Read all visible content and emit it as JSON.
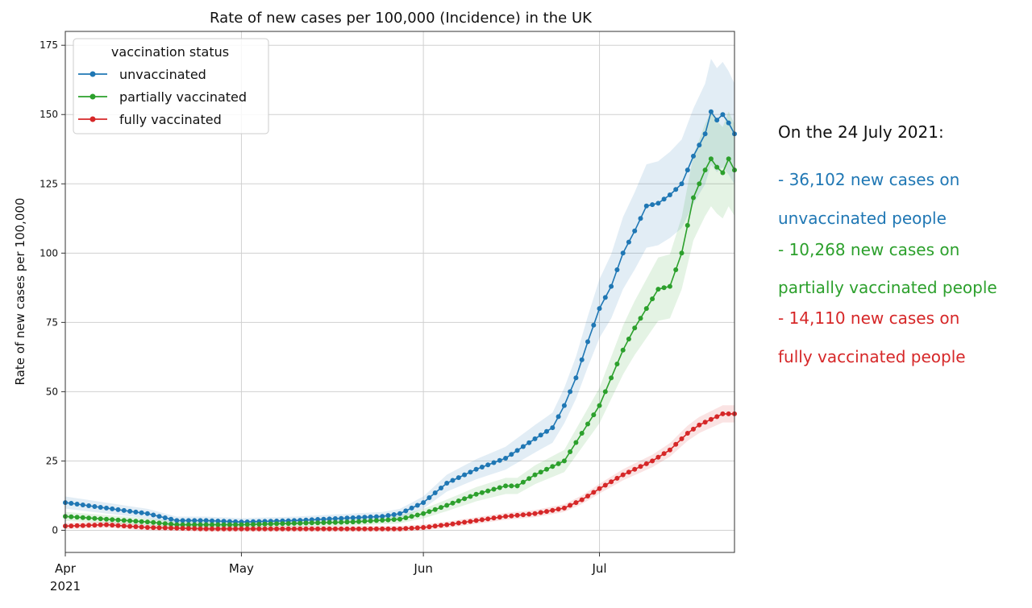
{
  "chart_data": {
    "type": "line",
    "title": "Rate of new cases per 100,000 (Incidence) in the UK",
    "xlabel": "",
    "ylabel": "Rate of new cases per 100,000",
    "x_start": "2021-04-01",
    "x_end": "2021-07-24",
    "ylim": [
      -8,
      180
    ],
    "yticks": [
      0,
      25,
      50,
      75,
      100,
      125,
      150,
      175
    ],
    "ytick_labels": [
      "0",
      "25",
      "50",
      "75",
      "100",
      "125",
      "150",
      "175"
    ],
    "xticks": [
      {
        "date": "2021-04-01",
        "label": "Apr",
        "sublabel": "2021"
      },
      {
        "date": "2021-05-01",
        "label": "May",
        "sublabel": ""
      },
      {
        "date": "2021-06-01",
        "label": "Jun",
        "sublabel": ""
      },
      {
        "date": "2021-07-01",
        "label": "Jul",
        "sublabel": ""
      }
    ],
    "grid": true,
    "legend": {
      "title": "vaccination status",
      "placement": "top-left"
    },
    "series": [
      {
        "name": "unvaccinated",
        "color": "#1f77b4",
        "points": [
          [
            "2021-04-01",
            10
          ],
          [
            "2021-04-08",
            8
          ],
          [
            "2021-04-15",
            6
          ],
          [
            "2021-04-20",
            3.5
          ],
          [
            "2021-04-25",
            3.5
          ],
          [
            "2021-05-01",
            3
          ],
          [
            "2021-05-10",
            3.5
          ],
          [
            "2021-05-15",
            4
          ],
          [
            "2021-05-20",
            4.5
          ],
          [
            "2021-05-25",
            5
          ],
          [
            "2021-05-28",
            6
          ],
          [
            "2021-06-01",
            10
          ],
          [
            "2021-06-05",
            17
          ],
          [
            "2021-06-10",
            22
          ],
          [
            "2021-06-15",
            26
          ],
          [
            "2021-06-20",
            33
          ],
          [
            "2021-06-23",
            37
          ],
          [
            "2021-06-25",
            45
          ],
          [
            "2021-06-27",
            55
          ],
          [
            "2021-06-29",
            68
          ],
          [
            "2021-07-01",
            80
          ],
          [
            "2021-07-03",
            88
          ],
          [
            "2021-07-05",
            100
          ],
          [
            "2021-07-07",
            108
          ],
          [
            "2021-07-09",
            117
          ],
          [
            "2021-07-11",
            118
          ],
          [
            "2021-07-13",
            121
          ],
          [
            "2021-07-15",
            125
          ],
          [
            "2021-07-17",
            135
          ],
          [
            "2021-07-19",
            143
          ],
          [
            "2021-07-20",
            151
          ],
          [
            "2021-07-21",
            148
          ],
          [
            "2021-07-22",
            150
          ],
          [
            "2021-07-23",
            147
          ],
          [
            "2021-07-24",
            143
          ]
        ],
        "band": 0.12
      },
      {
        "name": "partially vaccinated",
        "color": "#2ca02c",
        "points": [
          [
            "2021-04-01",
            5
          ],
          [
            "2021-04-08",
            4
          ],
          [
            "2021-04-15",
            3
          ],
          [
            "2021-04-20",
            2
          ],
          [
            "2021-05-01",
            2
          ],
          [
            "2021-05-10",
            2.5
          ],
          [
            "2021-05-20",
            3
          ],
          [
            "2021-05-28",
            4
          ],
          [
            "2021-06-01",
            6
          ],
          [
            "2021-06-05",
            9
          ],
          [
            "2021-06-10",
            13
          ],
          [
            "2021-06-15",
            16
          ],
          [
            "2021-06-17",
            16
          ],
          [
            "2021-06-20",
            20
          ],
          [
            "2021-06-25",
            25
          ],
          [
            "2021-06-28",
            35
          ],
          [
            "2021-07-01",
            45
          ],
          [
            "2021-07-03",
            55
          ],
          [
            "2021-07-05",
            65
          ],
          [
            "2021-07-07",
            73
          ],
          [
            "2021-07-09",
            80
          ],
          [
            "2021-07-11",
            87
          ],
          [
            "2021-07-13",
            88
          ],
          [
            "2021-07-15",
            100
          ],
          [
            "2021-07-16",
            110
          ],
          [
            "2021-07-17",
            120
          ],
          [
            "2021-07-19",
            130
          ],
          [
            "2021-07-20",
            134
          ],
          [
            "2021-07-21",
            131
          ],
          [
            "2021-07-22",
            129
          ],
          [
            "2021-07-23",
            134
          ],
          [
            "2021-07-24",
            130
          ]
        ],
        "band": 0.12
      },
      {
        "name": "fully vaccinated",
        "color": "#d62728",
        "points": [
          [
            "2021-04-01",
            1.5
          ],
          [
            "2021-04-08",
            2
          ],
          [
            "2021-04-15",
            1
          ],
          [
            "2021-04-25",
            0.5
          ],
          [
            "2021-05-01",
            0.5
          ],
          [
            "2021-05-10",
            0.5
          ],
          [
            "2021-05-20",
            0.5
          ],
          [
            "2021-05-28",
            0.5
          ],
          [
            "2021-06-01",
            1
          ],
          [
            "2021-06-05",
            2
          ],
          [
            "2021-06-10",
            3.5
          ],
          [
            "2021-06-15",
            5
          ],
          [
            "2021-06-20",
            6
          ],
          [
            "2021-06-25",
            8
          ],
          [
            "2021-06-28",
            11
          ],
          [
            "2021-07-01",
            15
          ],
          [
            "2021-07-05",
            20
          ],
          [
            "2021-07-10",
            25
          ],
          [
            "2021-07-13",
            29
          ],
          [
            "2021-07-16",
            35
          ],
          [
            "2021-07-18",
            38
          ],
          [
            "2021-07-20",
            40
          ],
          [
            "2021-07-22",
            42
          ],
          [
            "2021-07-24",
            42
          ]
        ],
        "band": 0.05
      }
    ]
  },
  "annotations": {
    "heading": "On the 24 July 2021:",
    "lines": [
      {
        "text": "- 36,102 new cases on",
        "color": "#1f77b4"
      },
      {
        "text": "unvaccinated people",
        "color": "#1f77b4"
      },
      {
        "text": "- 10,268 new cases on",
        "color": "#2ca02c"
      },
      {
        "text": "partially vaccinated people",
        "color": "#2ca02c"
      },
      {
        "text": "- 14,110 new cases on",
        "color": "#d62728"
      },
      {
        "text": "fully vaccinated people",
        "color": "#d62728"
      }
    ]
  }
}
